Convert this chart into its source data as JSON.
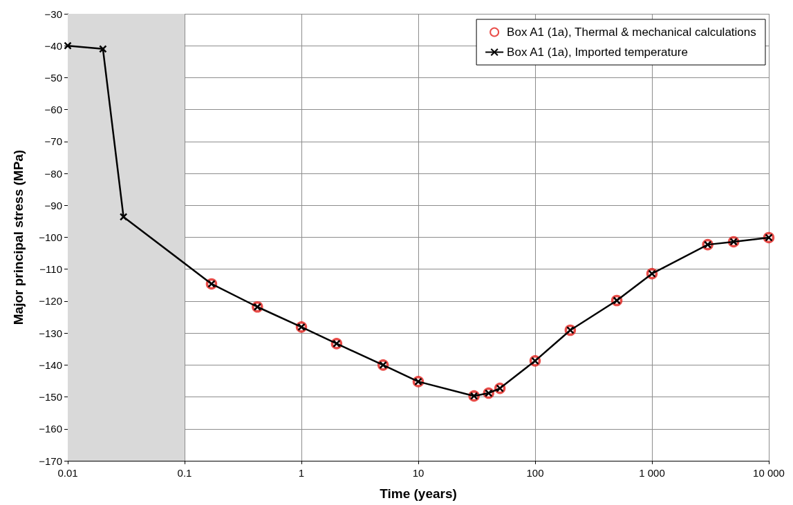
{
  "chart_data": {
    "type": "line",
    "xlabel": "Time (years)",
    "ylabel": "Major principal stress (MPa)",
    "log": "x",
    "grid": true,
    "legend": "top right",
    "xlim": [
      0.01,
      10000
    ],
    "xticks": [
      0.01,
      0.1,
      1,
      10,
      100,
      {
        "value": 1000,
        "label": "1 000"
      },
      {
        "value": 10000,
        "label": "10 000"
      }
    ],
    "ylim": [
      -170,
      -30
    ],
    "yticks": [
      {
        "value": -170,
        "label": "−170"
      },
      {
        "value": -160,
        "label": "−160"
      },
      {
        "value": -150,
        "label": "−150"
      },
      {
        "value": -140,
        "label": "−140"
      },
      {
        "value": -130,
        "label": "−130"
      },
      {
        "value": -120,
        "label": "−120"
      },
      {
        "value": -110,
        "label": "−110"
      },
      {
        "value": -100,
        "label": "−100"
      },
      {
        "value": -90,
        "label": "−90"
      },
      {
        "value": -80,
        "label": "−80"
      },
      {
        "value": -70,
        "label": "−70"
      },
      {
        "value": -60,
        "label": "−60"
      },
      {
        "value": -50,
        "label": "−50"
      },
      {
        "value": -40,
        "label": "−40"
      },
      {
        "value": -30,
        "label": "−30"
      }
    ],
    "bands": [
      {
        "axis": "x",
        "from": 0.01,
        "to": 0.1,
        "color": "#d9d9d9"
      }
    ],
    "series": [
      {
        "name": "Box A1 (1a), Thermal & mechanical calculations",
        "type": "scatter",
        "marker": "circle",
        "color": "#e3201b",
        "x": [
          0.17,
          0.42,
          1,
          2,
          5,
          10,
          30,
          40,
          50,
          100,
          200,
          500,
          1000,
          3000,
          5000,
          10000
        ],
        "values": [
          -114.6,
          -121.8,
          -128.1,
          -133.3,
          -140,
          -145.2,
          -149.7,
          -148.8,
          -147.3,
          -138.7,
          -129.1,
          -119.8,
          -111.4,
          -102.3,
          -101.4,
          -100.1
        ]
      },
      {
        "name": "Box A1 (1a), Imported temperature",
        "marker": "cross",
        "line_style": "solid",
        "color": "#000000",
        "x": [
          0.01,
          0.02,
          0.03,
          0.17,
          0.42,
          1,
          2,
          5,
          10,
          30,
          40,
          50,
          100,
          200,
          500,
          1000,
          3000,
          5000,
          10000
        ],
        "values": [
          -40,
          -41,
          -93.6,
          -114.6,
          -121.8,
          -128.1,
          -133.3,
          -140,
          -145.2,
          -149.7,
          -148.8,
          -147.3,
          -138.7,
          -129.1,
          -119.8,
          -111.4,
          -102.3,
          -101.4,
          -100.1
        ]
      }
    ]
  }
}
